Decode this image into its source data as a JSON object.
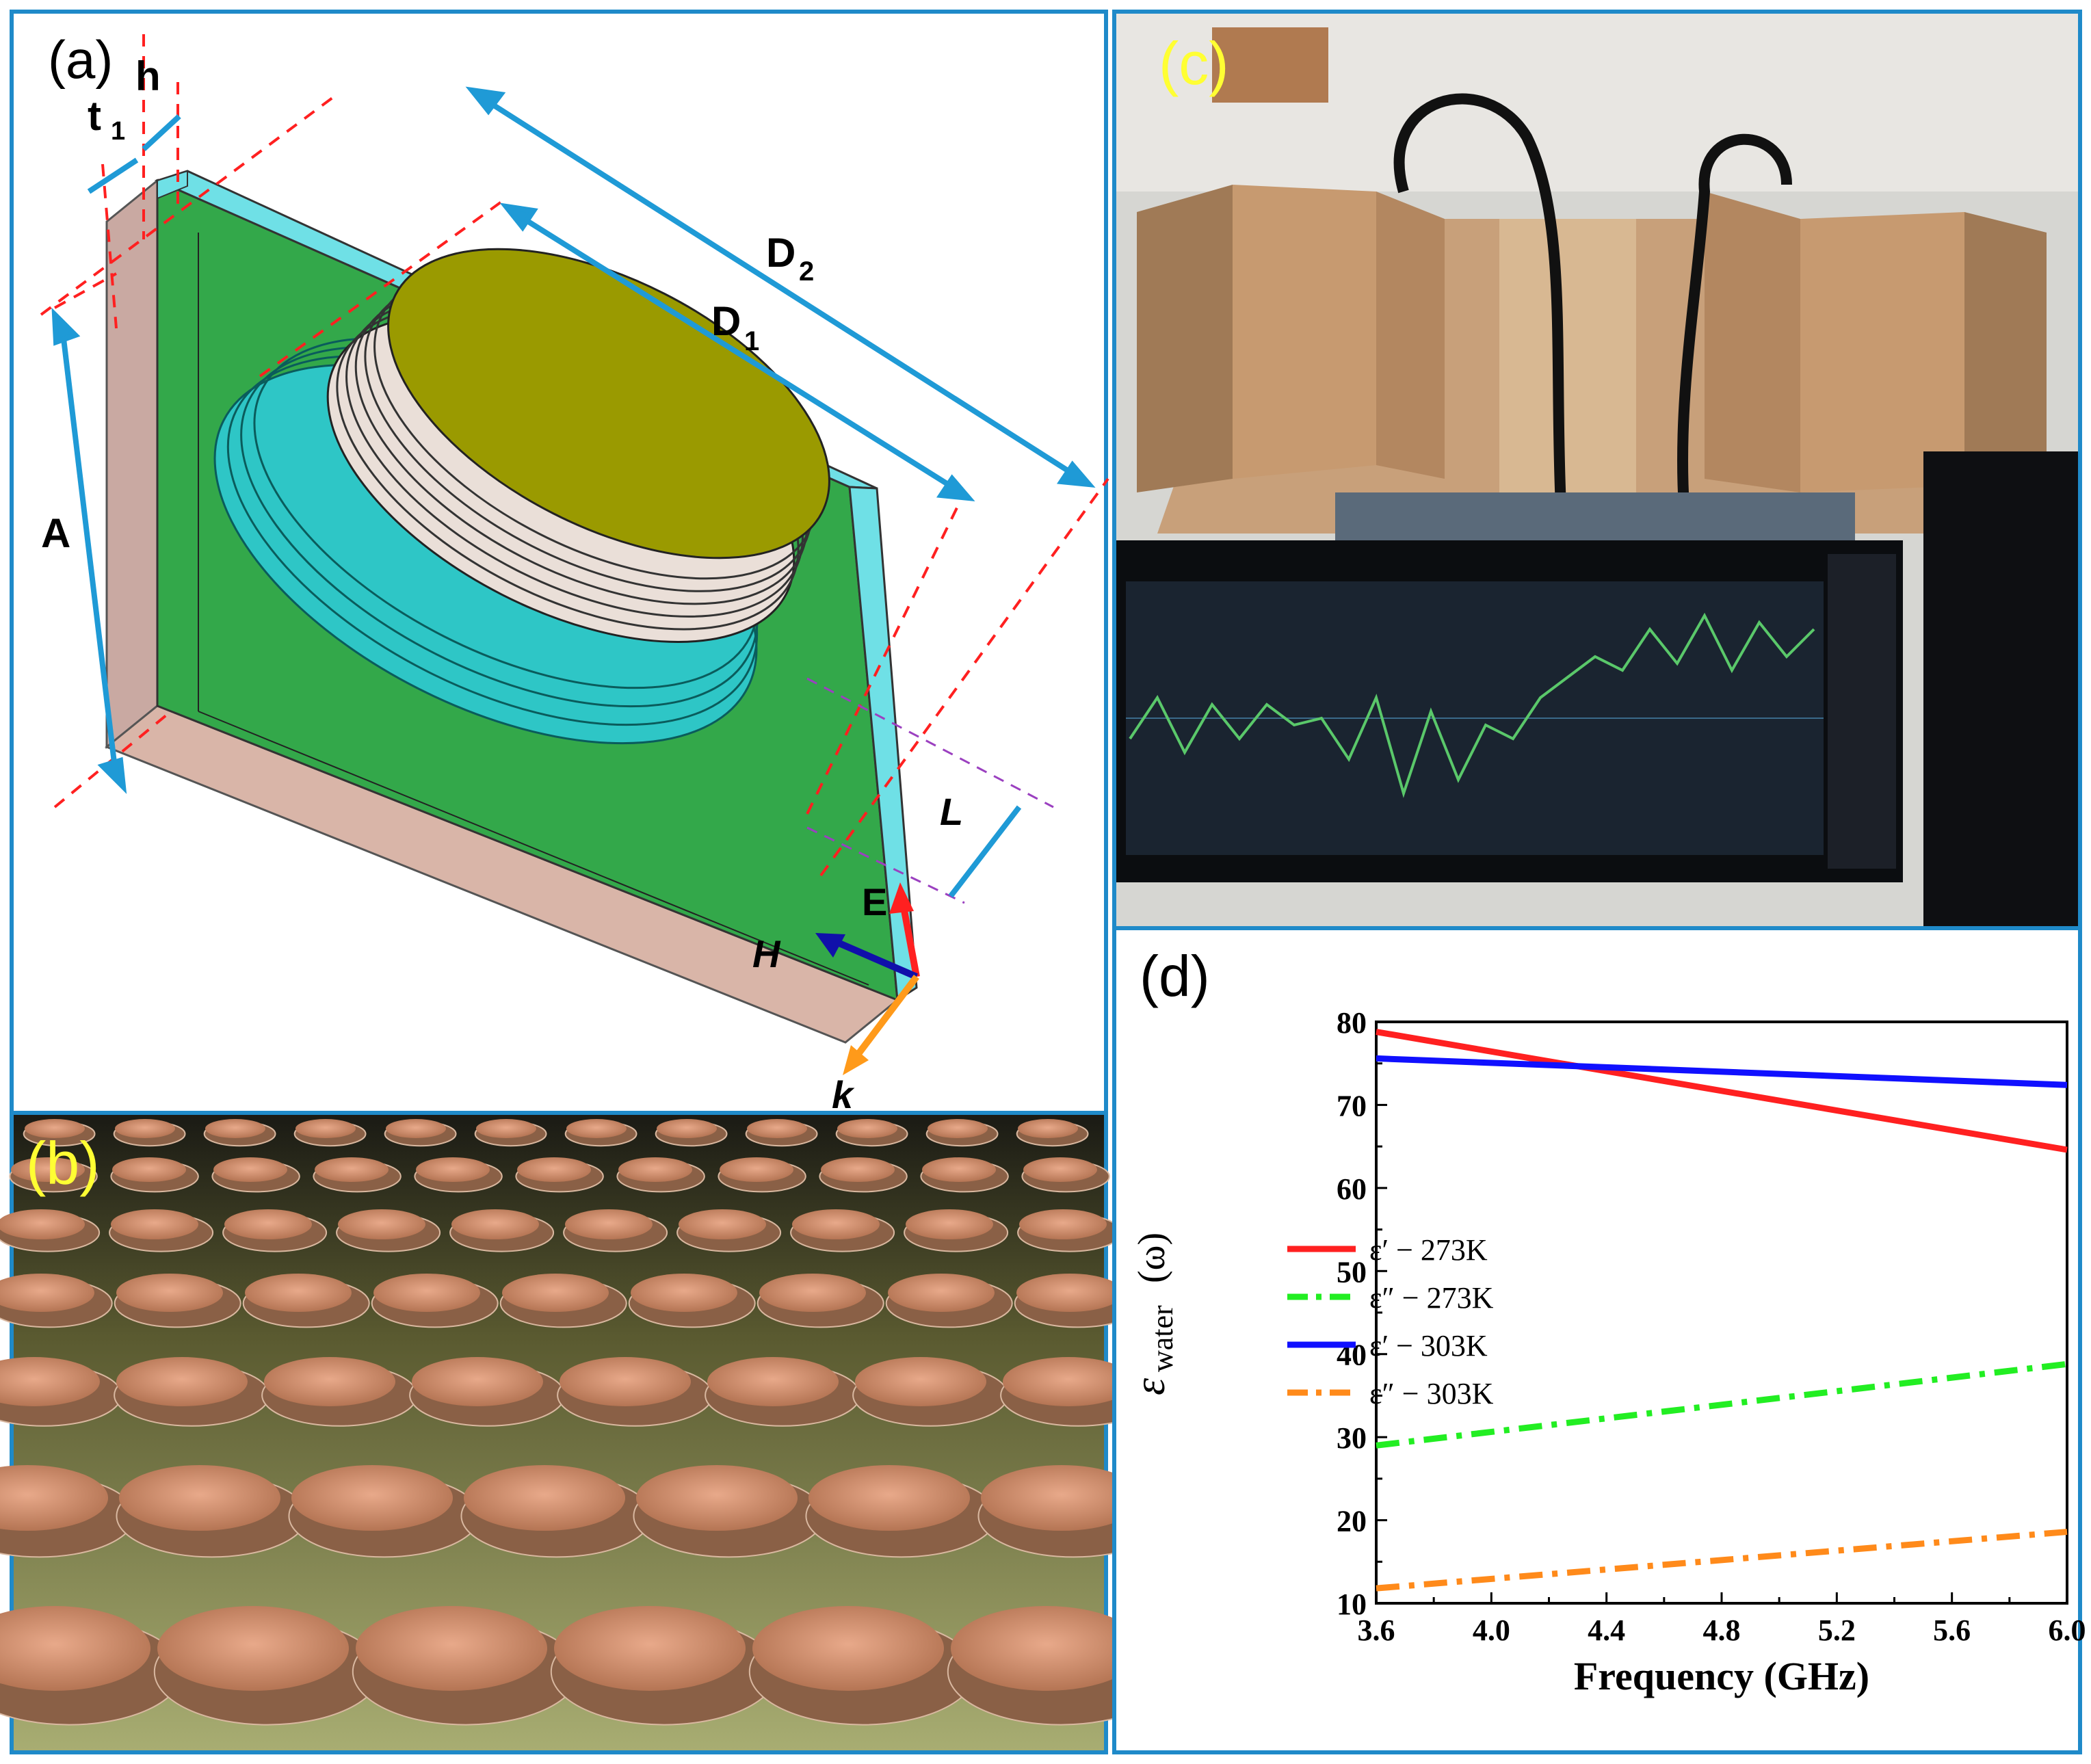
{
  "panels": {
    "a": {
      "label": "(a)",
      "dims": {
        "t": "t",
        "t_sub": "1",
        "h": "h",
        "D": "D",
        "D2_sub": "2",
        "D1_sub": "1",
        "A": "A",
        "L": "L"
      },
      "fields": {
        "E": "E",
        "H": "H",
        "k": "k"
      }
    },
    "b": {
      "label": "(b)"
    },
    "c": {
      "label": "(c)"
    },
    "d": {
      "label": "(d)"
    }
  },
  "colors": {
    "frame": "#1f8ac9",
    "substrate": "#2fa84a",
    "cyan": "#6fe0e6",
    "patch": "#9a9a00",
    "red": "#ff2020",
    "green": "#22ee22",
    "blue": "#1010ff",
    "orange": "#ff8a1a"
  },
  "chart_data": {
    "type": "line",
    "title": "",
    "xlabel": "Frequency (GHz)",
    "ylabel_main": "ε",
    "ylabel_sub": "water",
    "ylabel_tail": "(ω)",
    "xlim": [
      3.6,
      6.0
    ],
    "ylim": [
      10,
      80
    ],
    "xticks": [
      "3.6",
      "4.0",
      "4.4",
      "4.8",
      "5.2",
      "5.6",
      "6.0"
    ],
    "yticks": [
      "10",
      "20",
      "30",
      "40",
      "50",
      "60",
      "70",
      "80"
    ],
    "legend_position": "middle-left",
    "series": [
      {
        "name": "ε′ − 273K",
        "style": "solid",
        "color": "#ff2020",
        "x": [
          3.6,
          6.0
        ],
        "y": [
          78.8,
          64.6
        ]
      },
      {
        "name": "ε″ − 273K",
        "style": "dashdot",
        "color": "#22ee22",
        "x": [
          3.6,
          6.0
        ],
        "y": [
          29.0,
          38.8
        ]
      },
      {
        "name": "ε′ − 303K",
        "style": "solid",
        "color": "#1010ff",
        "x": [
          3.6,
          6.0
        ],
        "y": [
          75.6,
          72.4
        ]
      },
      {
        "name": "ε″ − 303K",
        "style": "dashdot",
        "color": "#ff8a1a",
        "x": [
          3.6,
          6.0
        ],
        "y": [
          11.8,
          18.6
        ]
      }
    ]
  }
}
